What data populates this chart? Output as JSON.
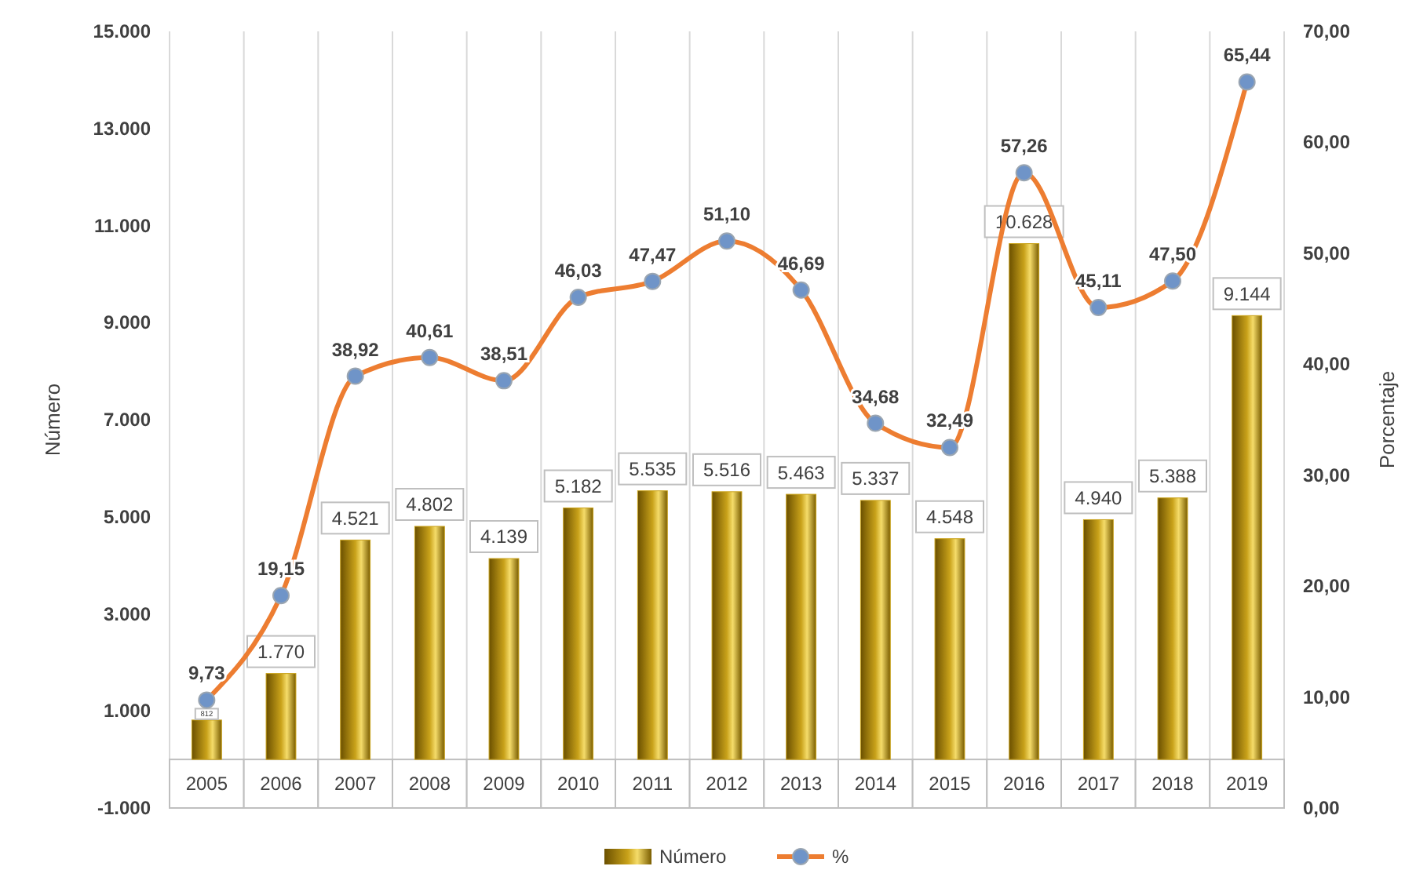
{
  "chart_data": {
    "type": "bar",
    "ylabel": "Número",
    "y2label": "Porcentaje",
    "categories": [
      "2005",
      "2006",
      "2007",
      "2008",
      "2009",
      "2010",
      "2011",
      "2012",
      "2013",
      "2014",
      "2015",
      "2016",
      "2017",
      "2018",
      "2019"
    ],
    "series": [
      {
        "name": "Número",
        "type": "bar",
        "color": "#c9a21a",
        "values": [
          812,
          1770,
          4521,
          4802,
          4139,
          5182,
          5535,
          5516,
          5463,
          5337,
          4548,
          10628,
          4940,
          5388,
          9144
        ],
        "value_labels": [
          "812",
          "1.770",
          "4.521",
          "4.802",
          "4.139",
          "5.182",
          "5.535",
          "5.516",
          "5.463",
          "5.337",
          "4.548",
          "10.628",
          "4.940",
          "5.388",
          "9.144"
        ]
      },
      {
        "name": "%",
        "type": "line",
        "axis": "y2",
        "color": "#ed7d31",
        "marker": "circle",
        "values": [
          9.73,
          19.15,
          38.92,
          40.61,
          38.51,
          46.03,
          47.47,
          51.1,
          46.69,
          34.68,
          32.49,
          57.26,
          45.11,
          47.5,
          65.44
        ],
        "value_labels": [
          "9,73",
          "19,15",
          "38,92",
          "40,61",
          "38,51",
          "46,03",
          "47,47",
          "51,10",
          "46,69",
          "34,68",
          "32,49",
          "57,26",
          "45,11",
          "47,50",
          "65,44"
        ]
      }
    ],
    "ylim": [
      -1000,
      15000
    ],
    "yticks": [
      {
        "value": -1000,
        "label": "-1.000"
      },
      {
        "value": 1000,
        "label": "1.000"
      },
      {
        "value": 3000,
        "label": "3.000"
      },
      {
        "value": 5000,
        "label": "5.000"
      },
      {
        "value": 7000,
        "label": "7.000"
      },
      {
        "value": 9000,
        "label": "9.000"
      },
      {
        "value": 11000,
        "label": "11.000"
      },
      {
        "value": 13000,
        "label": "13.000"
      },
      {
        "value": 15000,
        "label": "15.000"
      }
    ],
    "y2lim": [
      0,
      70
    ],
    "y2ticks": [
      {
        "value": 0,
        "label": "0,00"
      },
      {
        "value": 10,
        "label": "10,00"
      },
      {
        "value": 20,
        "label": "20,00"
      },
      {
        "value": 30,
        "label": "30,00"
      },
      {
        "value": 40,
        "label": "40,00"
      },
      {
        "value": 50,
        "label": "50,00"
      },
      {
        "value": 60,
        "label": "60,00"
      },
      {
        "value": 70,
        "label": "70,00"
      }
    ],
    "grid": "x",
    "legend": "bottom"
  }
}
